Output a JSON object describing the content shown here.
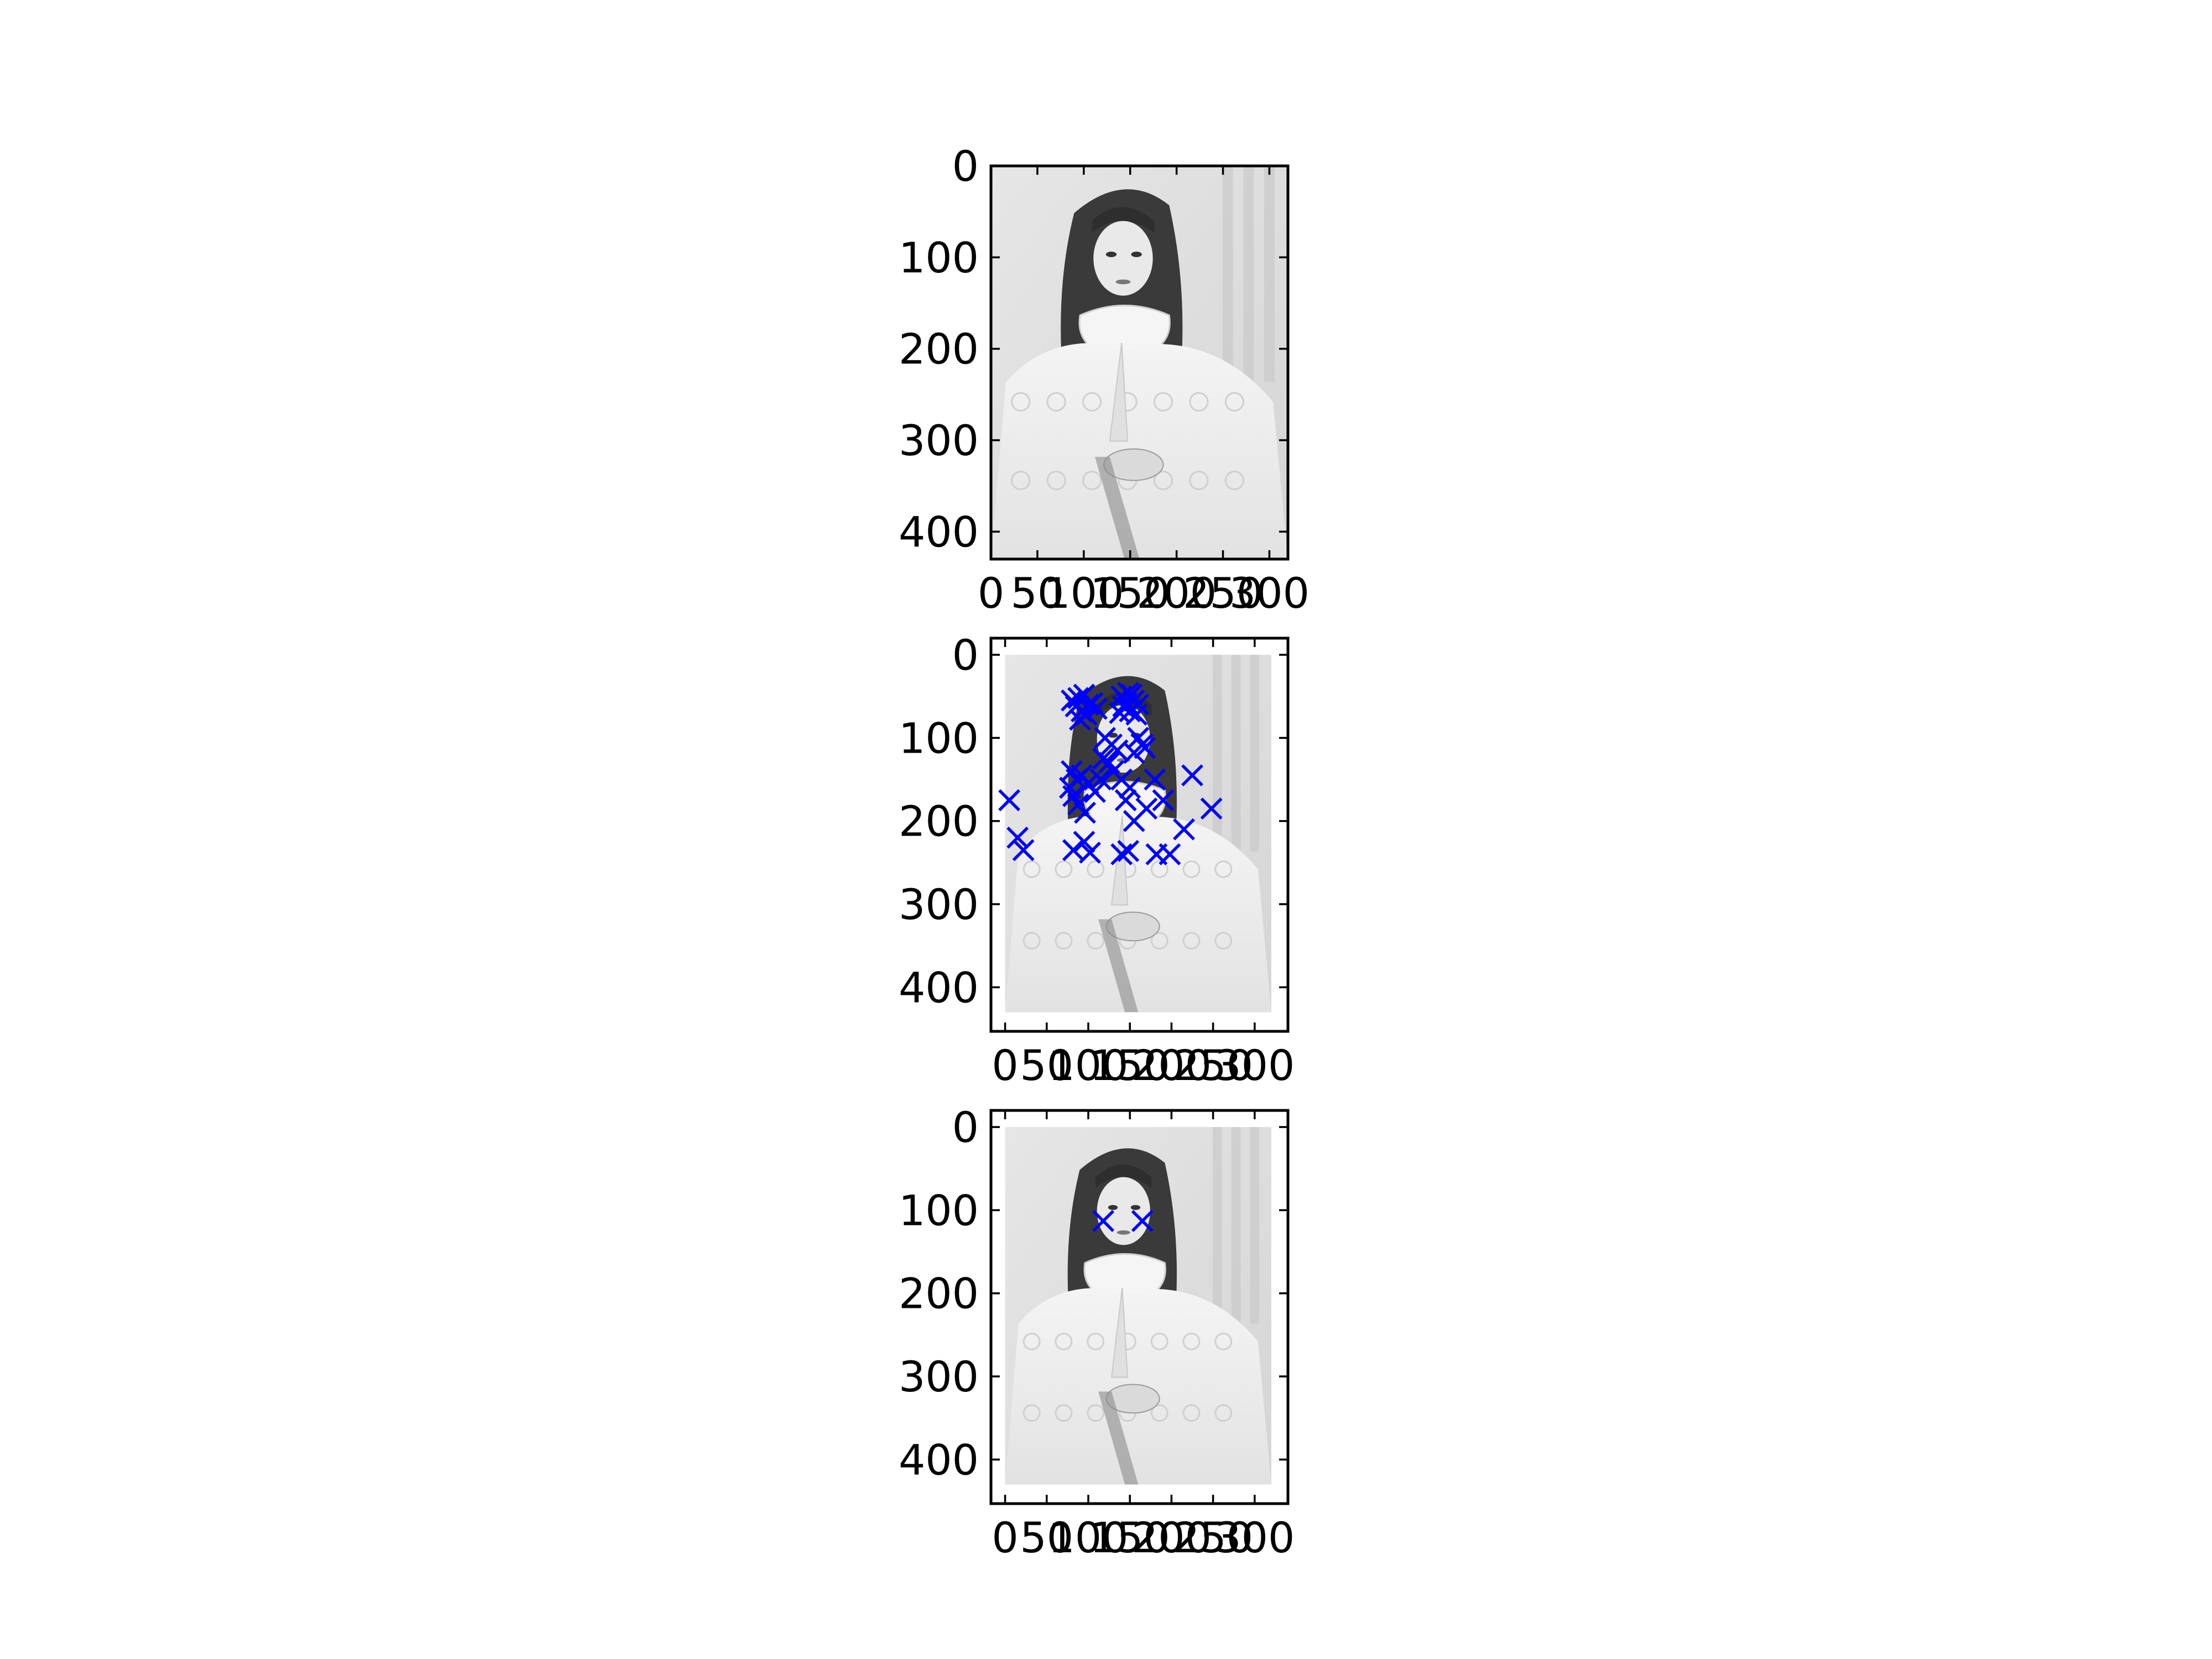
{
  "figure": {
    "background": "#ffffff"
  },
  "chart_data": [
    {
      "type": "scatter",
      "panel": "top",
      "image": "grayscale-portrait-photo",
      "image_extent": {
        "x": [
          0,
          320
        ],
        "y": [
          0,
          430
        ]
      },
      "xlim": [
        0,
        320
      ],
      "ylim": [
        430,
        0
      ],
      "xticks": [
        0,
        50,
        100,
        150,
        200,
        250,
        300
      ],
      "yticks": [
        0,
        100,
        200,
        300,
        400
      ],
      "marker": "x",
      "marker_color": "#0000ff",
      "points": []
    },
    {
      "type": "scatter",
      "panel": "middle",
      "image": "grayscale-portrait-photo",
      "image_extent": {
        "x": [
          0,
          320
        ],
        "y": [
          0,
          430
        ]
      },
      "xlim": [
        -17,
        340
      ],
      "ylim": [
        453,
        -20
      ],
      "xticks": [
        0,
        50,
        100,
        150,
        200,
        250,
        300
      ],
      "yticks": [
        0,
        100,
        200,
        300,
        400
      ],
      "marker": "x",
      "marker_color": "#0000ff",
      "points": [
        [
          80,
          55
        ],
        [
          88,
          52
        ],
        [
          95,
          48
        ],
        [
          100,
          60
        ],
        [
          92,
          68
        ],
        [
          85,
          62
        ],
        [
          105,
          58
        ],
        [
          98,
          72
        ],
        [
          90,
          78
        ],
        [
          110,
          65
        ],
        [
          140,
          50
        ],
        [
          148,
          46
        ],
        [
          155,
          55
        ],
        [
          142,
          62
        ],
        [
          150,
          68
        ],
        [
          158,
          72
        ],
        [
          146,
          58
        ],
        [
          152,
          48
        ],
        [
          138,
          70
        ],
        [
          160,
          60
        ],
        [
          120,
          100
        ],
        [
          128,
          108
        ],
        [
          135,
          115
        ],
        [
          118,
          125
        ],
        [
          125,
          130
        ],
        [
          160,
          100
        ],
        [
          165,
          108
        ],
        [
          155,
          118
        ],
        [
          168,
          112
        ],
        [
          130,
          140
        ],
        [
          80,
          140
        ],
        [
          86,
          150
        ],
        [
          78,
          160
        ],
        [
          92,
          145
        ],
        [
          100,
          155
        ],
        [
          82,
          170
        ],
        [
          88,
          180
        ],
        [
          108,
          165
        ],
        [
          115,
          150
        ],
        [
          96,
          190
        ],
        [
          140,
          150
        ],
        [
          150,
          160
        ],
        [
          145,
          175
        ],
        [
          180,
          150
        ],
        [
          190,
          175
        ],
        [
          170,
          185
        ],
        [
          225,
          145
        ],
        [
          248,
          185
        ],
        [
          215,
          210
        ],
        [
          155,
          200
        ],
        [
          5,
          175
        ],
        [
          15,
          220
        ],
        [
          22,
          235
        ],
        [
          82,
          235
        ],
        [
          95,
          225
        ],
        [
          102,
          238
        ],
        [
          140,
          240
        ],
        [
          148,
          236
        ],
        [
          182,
          240
        ],
        [
          198,
          240
        ]
      ]
    },
    {
      "type": "scatter",
      "panel": "bottom",
      "image": "grayscale-portrait-photo",
      "image_extent": {
        "x": [
          0,
          320
        ],
        "y": [
          0,
          430
        ]
      },
      "xlim": [
        -17,
        340
      ],
      "ylim": [
        453,
        -20
      ],
      "xticks": [
        0,
        50,
        100,
        150,
        200,
        250,
        300
      ],
      "yticks": [
        0,
        100,
        200,
        300,
        400
      ],
      "marker": "x",
      "marker_color": "#0000ff",
      "points": [
        [
          118,
          113
        ],
        [
          165,
          113
        ]
      ]
    }
  ]
}
